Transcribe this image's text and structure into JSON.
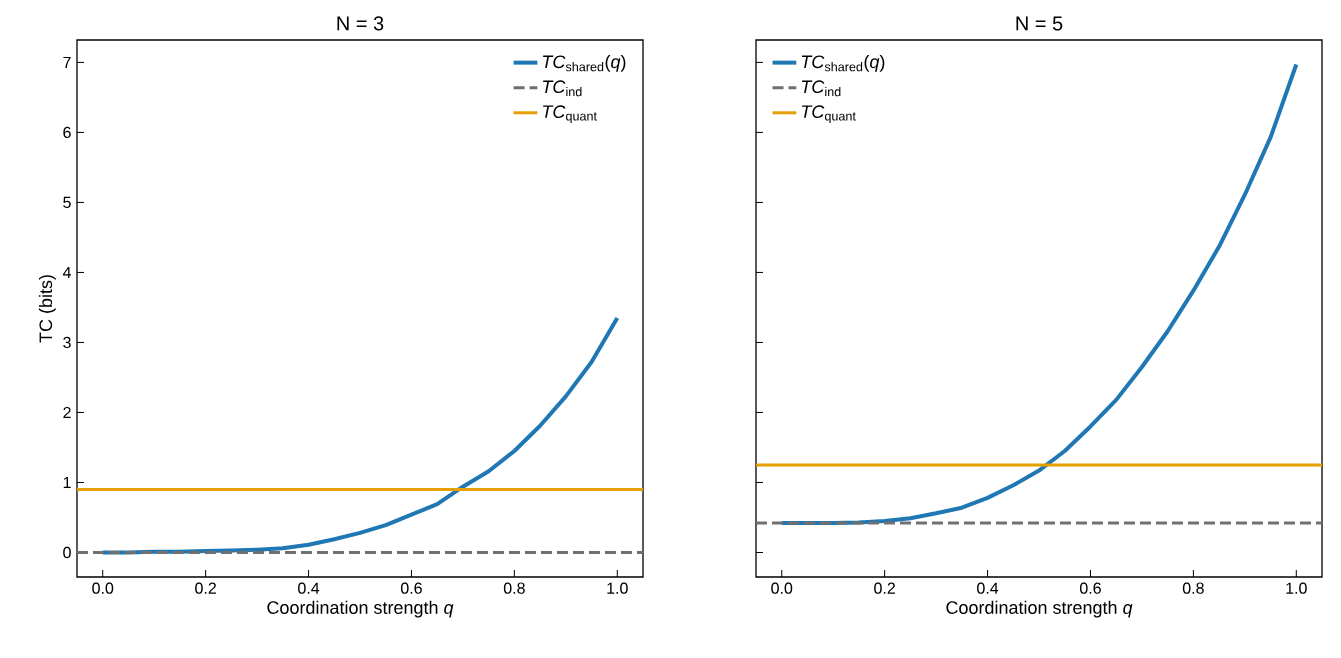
{
  "chart_data": [
    {
      "type": "line",
      "title": "N = 3",
      "xlabel": "Coordination strength *q*",
      "ylabel": "TC (bits)",
      "x": [
        0,
        0.05,
        0.1,
        0.15,
        0.2,
        0.25,
        0.3,
        0.35,
        0.4,
        0.45,
        0.5,
        0.55,
        0.6,
        0.65,
        0.7,
        0.75,
        0.8,
        0.85,
        0.9,
        0.95,
        1.0
      ],
      "series": [
        {
          "name": "*TC*$_{shared}$(*q*)",
          "color": "#1f77b4",
          "values": [
            0.0,
            0.0,
            0.01,
            0.01,
            0.02,
            0.03,
            0.04,
            0.06,
            0.11,
            0.19,
            0.28,
            0.39,
            0.54,
            0.69,
            0.94,
            1.16,
            1.45,
            1.81,
            2.23,
            2.72,
            3.35
          ]
        }
      ],
      "ref_lines": [
        {
          "axis": "y",
          "value": 0.0,
          "label": "*TC*$_{ind}$",
          "color": "#707070",
          "line_style": "dashed"
        },
        {
          "axis": "y",
          "value": 0.9,
          "label": "*TC*$_{quant}$",
          "color": "#e69f00",
          "line_style": "solid"
        }
      ],
      "xlim": [
        -0.05,
        1.05
      ],
      "ylim": [
        -0.35,
        7.32
      ],
      "xticks": [
        {
          "value": 0,
          "label": "0.0"
        },
        {
          "value": 0.2,
          "label": "0.2"
        },
        {
          "value": 0.4,
          "label": "0.4"
        },
        {
          "value": 0.6,
          "label": "0.6"
        },
        {
          "value": 0.8,
          "label": "0.8"
        },
        {
          "value": 1.0,
          "label": "1.0"
        }
      ],
      "yticks": [
        0,
        1,
        2,
        3,
        4,
        5,
        6,
        7
      ],
      "legend": "top right",
      "grid": false,
      "line_style": "solid",
      "marker": "none"
    },
    {
      "type": "line",
      "title": "N = 5",
      "xlabel": "Coordination strength *q*",
      "x": [
        0,
        0.05,
        0.1,
        0.15,
        0.2,
        0.25,
        0.3,
        0.35,
        0.4,
        0.45,
        0.5,
        0.55,
        0.6,
        0.65,
        0.7,
        0.75,
        0.8,
        0.85,
        0.9,
        0.95,
        1.0
      ],
      "series": [
        {
          "name": "*TC*$_{shared}$(*q*)",
          "color": "#1f77b4",
          "values": [
            0.42,
            0.42,
            0.42,
            0.43,
            0.45,
            0.49,
            0.56,
            0.64,
            0.78,
            0.96,
            1.17,
            1.45,
            1.8,
            2.18,
            2.65,
            3.16,
            3.74,
            4.37,
            5.11,
            5.93,
            6.97
          ]
        }
      ],
      "ref_lines": [
        {
          "axis": "y",
          "value": 0.42,
          "label": "*TC*$_{ind}$",
          "color": "#707070",
          "line_style": "dashed"
        },
        {
          "axis": "y",
          "value": 1.25,
          "label": "*TC*$_{quant}$",
          "color": "#e69f00",
          "line_style": "solid"
        }
      ],
      "xlim": [
        -0.05,
        1.05
      ],
      "ylim": [
        -0.35,
        7.32
      ],
      "xticks": [
        {
          "value": 0,
          "label": "0.0"
        },
        {
          "value": 0.2,
          "label": "0.2"
        },
        {
          "value": 0.4,
          "label": "0.4"
        },
        {
          "value": 0.6,
          "label": "0.6"
        },
        {
          "value": 0.8,
          "label": "0.8"
        },
        {
          "value": 1.0,
          "label": "1.0"
        }
      ],
      "yticks": [
        0,
        1,
        2,
        3,
        4,
        5,
        6,
        7
      ],
      "tick_labels": "x",
      "legend": "top left",
      "grid": false,
      "line_style": "solid",
      "marker": "none"
    }
  ]
}
